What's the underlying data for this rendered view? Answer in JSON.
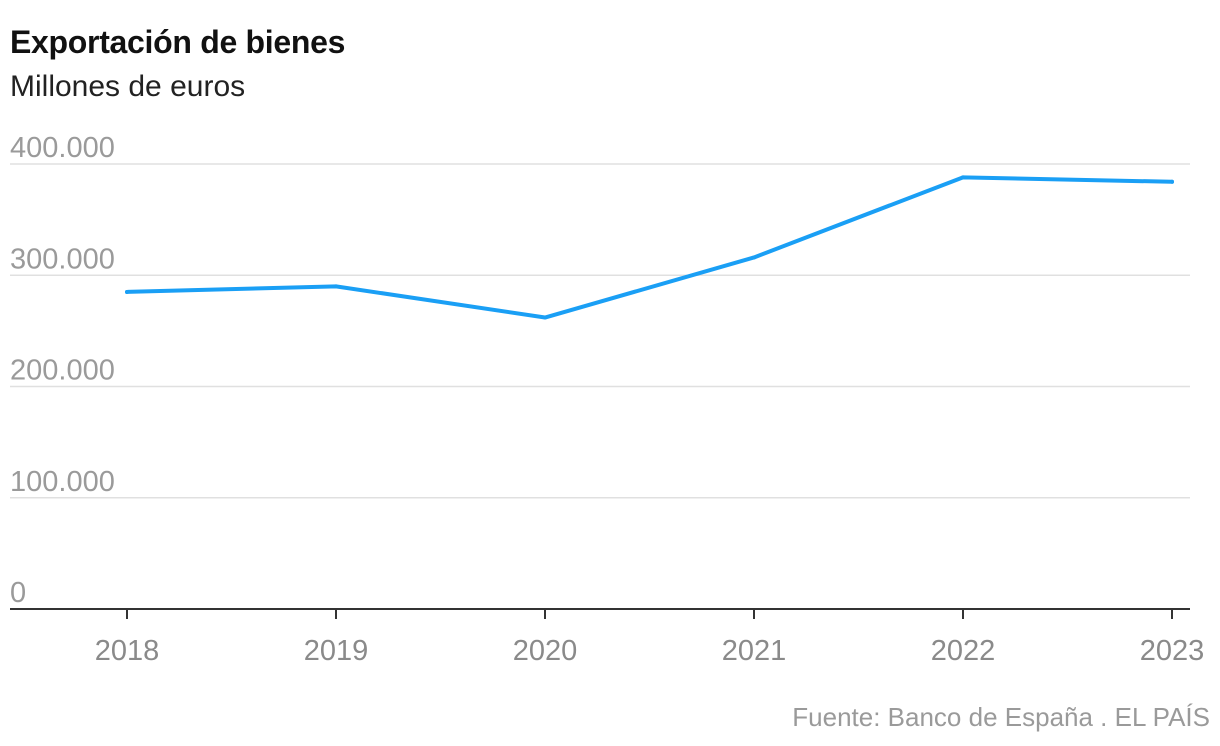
{
  "chart_data": {
    "type": "line",
    "title": "Exportación de bienes",
    "subtitle": "Millones de euros",
    "x": [
      "2018",
      "2019",
      "2020",
      "2021",
      "2022",
      "2023"
    ],
    "series": [
      {
        "values": [
          285000,
          290000,
          262000,
          316000,
          388000,
          384000
        ],
        "color": "#1a9ff5"
      }
    ],
    "yticks": [
      0,
      100000,
      200000,
      300000,
      400000
    ],
    "ytick_labels": [
      "0",
      "100.000",
      "200.000",
      "300.000",
      "400.000"
    ],
    "ylim": [
      0,
      400000
    ],
    "grid": true,
    "legend": "none"
  },
  "source": "Fuente: Banco de España . EL PAÍS",
  "colors": {
    "line": "#1a9ff5",
    "grid": "#e0e0e0",
    "axis": "#333333",
    "tick_text": "#9a9a9a"
  }
}
